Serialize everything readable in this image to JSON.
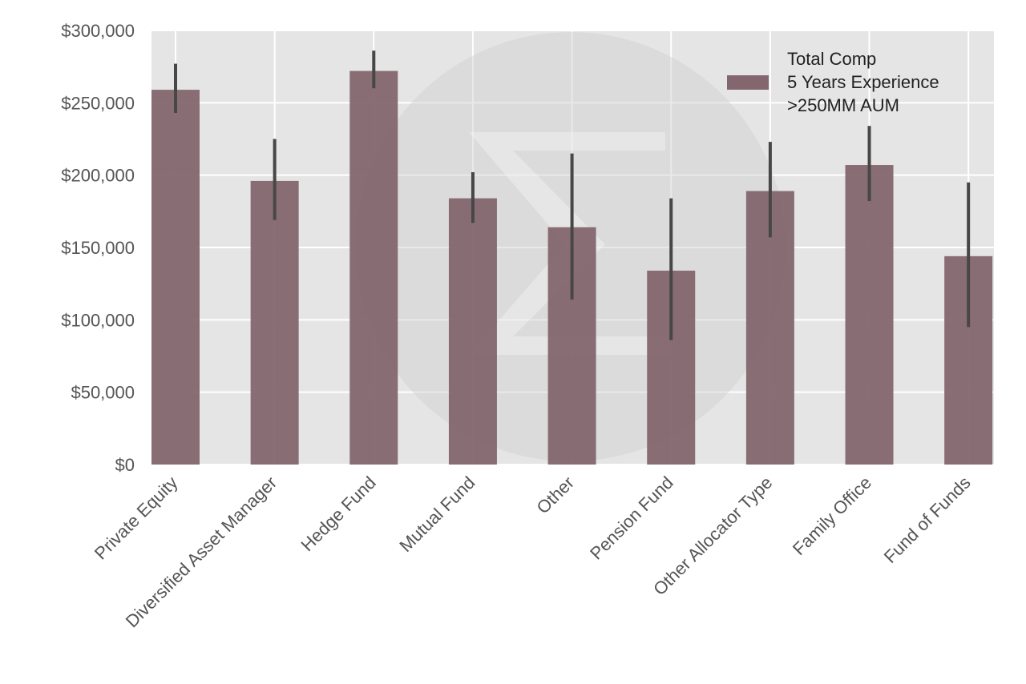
{
  "chart_data": {
    "type": "bar",
    "categories": [
      "Private Equity",
      "Diversified Asset Manager",
      "Hedge Fund",
      "Mutual Fund",
      "Other",
      "Pension Fund",
      "Other Allocator Type",
      "Family Office",
      "Fund of Funds"
    ],
    "series": [
      {
        "name": "Total Comp\n5 Years Experience\n>250MM AUM",
        "values": [
          259000,
          196000,
          272000,
          184000,
          164000,
          134000,
          189000,
          207000,
          144000
        ],
        "error_low": [
          243000,
          169000,
          260000,
          167000,
          114000,
          86000,
          157000,
          182000,
          95000
        ],
        "error_high": [
          277000,
          225000,
          286000,
          202000,
          215000,
          184000,
          223000,
          234000,
          195000
        ]
      }
    ],
    "ylim": [
      0,
      300000
    ],
    "yticks": [
      0,
      50000,
      100000,
      150000,
      200000,
      250000,
      300000
    ],
    "ytick_labels": [
      "$0",
      "$50,000",
      "$100,000",
      "$150,000",
      "$200,000",
      "$250,000",
      "$300,000"
    ],
    "grid": true,
    "legend_position": "top-right",
    "colors": {
      "bar": "#84666f",
      "error": "#474747",
      "plot_bg": "#e5e5e5",
      "grid": "#ffffff",
      "watermark": "#cfcfcf"
    },
    "xlabel": "",
    "ylabel": "",
    "title": ""
  }
}
